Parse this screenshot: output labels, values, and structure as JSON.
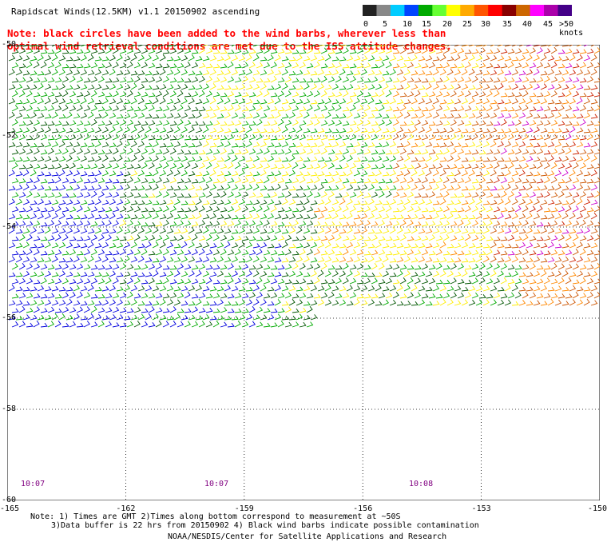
{
  "title": "Rapidscat Winds(12.5KM) v1.1 20150902 ascending",
  "note_red": [
    "Note: black circles have been added to the wind barbs, wherever less than",
    "   optimal wind retrieval conditions are met due to the ISS attitude changes."
  ],
  "colorbar": {
    "labels": [
      "0",
      "5",
      "10",
      "15",
      "20",
      "25",
      "30",
      "35",
      "40",
      "45",
      ">50 knots"
    ],
    "colors": [
      "#222222",
      "#888888",
      "#00ccff",
      "#0044ff",
      "#00aa00",
      "#66ff33",
      "#ffff00",
      "#ffaa00",
      "#ff5500",
      "#ff0000",
      "#880000",
      "#cc6600",
      "#ff00ff",
      "#aa00aa",
      "#440088"
    ]
  },
  "lon_labels": [
    "-165",
    "-162",
    "-159",
    "-156",
    "-153",
    "-150"
  ],
  "lat_labels": [
    "-50",
    "-52",
    "-54",
    "-56",
    "-58",
    "-60"
  ],
  "time_labels": [
    "10:07",
    "10:07",
    "10:08"
  ],
  "footnote": [
    "Note: 1) Times are GMT 2)Times along bottom correspond to measurement at ~50S",
    "3)Data buffer is 22 hrs from 20150902 4) Black wind barbs indicate possible contamination"
  ],
  "credit": "NOAA/NESDIS/Center for Satellite Applications and Research",
  "map": {
    "lon_range": [
      -165,
      -150
    ],
    "lat_range": [
      -60,
      -50
    ],
    "gridlines": "dotted",
    "speed_colors": {
      "blue": "#0000dd",
      "green": "#00aa00",
      "darkgreen": "#005500",
      "yellow": "#ffee00",
      "orange": "#ff8800",
      "darkorange": "#cc5500",
      "red": "#cc2200",
      "magenta": "#cc00cc"
    }
  }
}
